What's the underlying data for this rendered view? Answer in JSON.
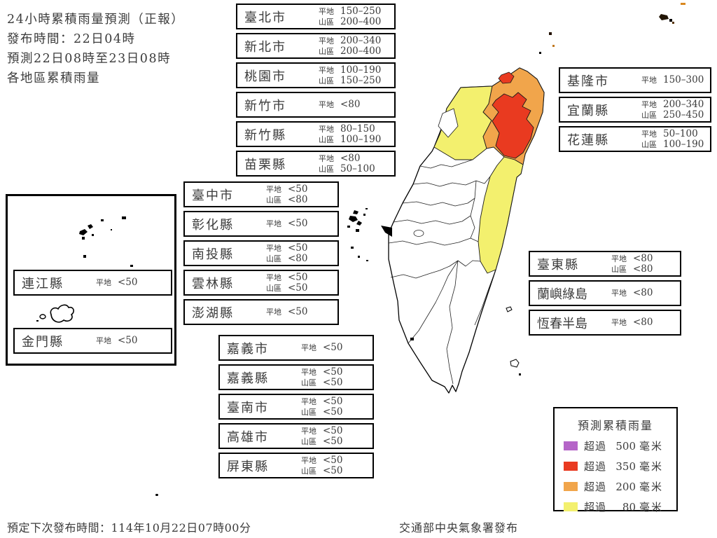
{
  "header": {
    "lines": [
      "24小時累積雨量預測（正報）",
      "發布時間：22日04時",
      "預測22日08時至23日08時",
      "各地區累積雨量"
    ]
  },
  "labels": {
    "plain": "平地",
    "mountain": "山區"
  },
  "region_boxes": {
    "north": [
      {
        "name": "臺北市",
        "plain": "150–250",
        "mountain": "200–400"
      },
      {
        "name": "新北市",
        "plain": "200–340",
        "mountain": "200–400"
      },
      {
        "name": "桃園市",
        "plain": "100–190",
        "mountain": "150–250"
      },
      {
        "name": "新竹市",
        "plain": "<80"
      },
      {
        "name": "新竹縣",
        "plain": "80–150",
        "mountain": "100–190"
      },
      {
        "name": "苗栗縣",
        "plain": "<80",
        "mountain": "50–100"
      }
    ],
    "central": [
      {
        "name": "臺中市",
        "plain": "<50",
        "mountain": "<80"
      },
      {
        "name": "彰化縣",
        "plain": "<50"
      },
      {
        "name": "南投縣",
        "plain": "<50",
        "mountain": "<80"
      },
      {
        "name": "雲林縣",
        "plain": "<50",
        "mountain": "<50"
      },
      {
        "name": "澎湖縣",
        "plain": "<50"
      }
    ],
    "south": [
      {
        "name": "嘉義市",
        "plain": "<50"
      },
      {
        "name": "嘉義縣",
        "plain": "<50",
        "mountain": "<50"
      },
      {
        "name": "臺南市",
        "plain": "<50",
        "mountain": "<50"
      },
      {
        "name": "高雄市",
        "plain": "<50",
        "mountain": "<50"
      },
      {
        "name": "屏東縣",
        "plain": "<50",
        "mountain": "<50"
      }
    ],
    "northeast": [
      {
        "name": "基隆市",
        "plain": "150–300"
      },
      {
        "name": "宜蘭縣",
        "plain": "200–340",
        "mountain": "250–450"
      },
      {
        "name": "花蓮縣",
        "plain": "50–100",
        "mountain": "100–190"
      }
    ],
    "southeast": [
      {
        "name": "臺東縣",
        "plain": "<80",
        "mountain": "<80"
      },
      {
        "name": "蘭嶼綠島",
        "plain": "<80"
      },
      {
        "name": "恆春半島",
        "plain": "<80"
      }
    ],
    "islands": [
      {
        "name": "連江縣",
        "plain": "<50"
      },
      {
        "name": "金門縣",
        "plain": "<50"
      }
    ]
  },
  "legend": {
    "title": "預測累積雨量",
    "exceed_label": "超過",
    "unit": "毫米",
    "items": [
      {
        "value": "500",
        "color": "#b565c8"
      },
      {
        "value": "350",
        "color": "#e93a20"
      },
      {
        "value": "200",
        "color": "#f1a54b"
      },
      {
        "value": "80",
        "color": "#f3f06e"
      }
    ]
  },
  "map_colors": {
    "over500": "#b565c8",
    "over350": "#e93a20",
    "over200": "#f1a54b",
    "over80": "#f3f06e",
    "none": "#ffffff",
    "boundary": "#1a1a1a"
  },
  "footer": {
    "next_issue": "預定下次發布時間：114年10月22日07時00分",
    "agency": "交通部中央氣象署發布"
  }
}
